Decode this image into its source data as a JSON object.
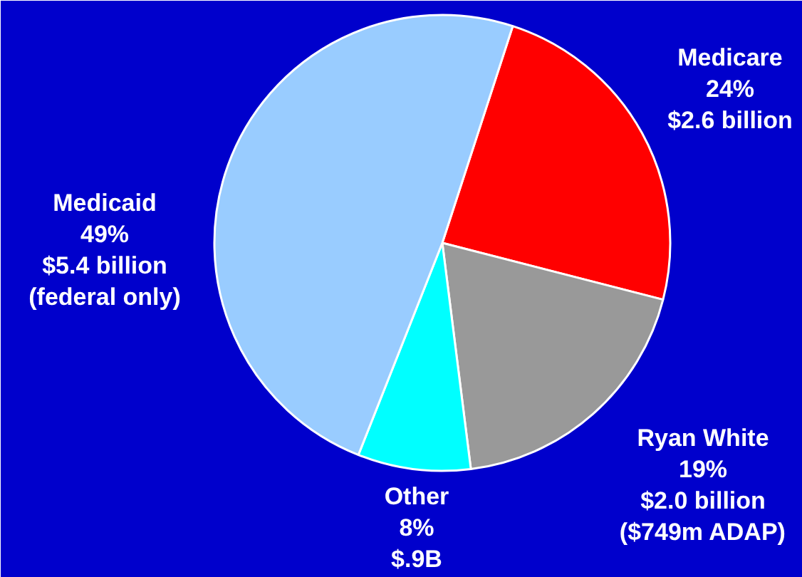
{
  "chart_data": {
    "type": "pie",
    "categories": [
      "Medicare",
      "Ryan White",
      "Other",
      "Medicaid"
    ],
    "values": [
      24,
      19,
      8,
      49
    ],
    "colors": [
      "#ff0000",
      "#999999",
      "#00ffff",
      "#99ccff"
    ],
    "value_labels": [
      "24%\n$2.6 billion",
      "19%\n$2.0 billion\n($749m ADAP)",
      "8%\n$.9B",
      "49%\n$5.4 billion\n(federal only)"
    ],
    "legend": false
  }
}
